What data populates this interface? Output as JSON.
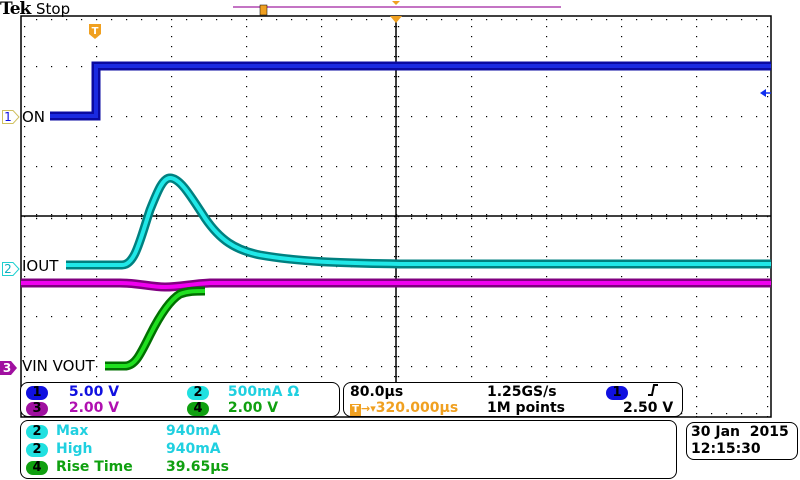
{
  "header": {
    "brand": "Tek",
    "status": "Stop"
  },
  "colors": {
    "ch1": "#1010e0",
    "ch2": "#00d8d8",
    "ch3": "#c000c0",
    "ch4": "#00a000",
    "trigger": "#f0a020",
    "grid": "#000000"
  },
  "channels": [
    {
      "id": "1",
      "label": "ON",
      "scale": "5.00 V"
    },
    {
      "id": "2",
      "label": "IOUT",
      "scale": "500mA Ω"
    },
    {
      "id": "3",
      "label": "VIN VOUT",
      "scale": "2.00 V"
    },
    {
      "id": "4",
      "label": "",
      "scale": "2.00 V"
    }
  ],
  "horizontal": {
    "time_per_div": "80.0µs",
    "trigger_position": "320.000µs",
    "sample_rate": "1.25GS/s",
    "record_length": "1M points"
  },
  "trigger": {
    "source": "1",
    "slope": "rising-edge",
    "level": "2.50 V"
  },
  "measurements": [
    {
      "channel": "2",
      "name": "Max",
      "value": "940mA"
    },
    {
      "channel": "2",
      "name": "High",
      "value": "940mA"
    },
    {
      "channel": "4",
      "name": "Rise Time",
      "value": "39.65µs"
    }
  ],
  "datetime": {
    "date": "30 Jan  2015",
    "time": "12:15:30"
  },
  "markers": {
    "trigger_glyph": "T"
  }
}
